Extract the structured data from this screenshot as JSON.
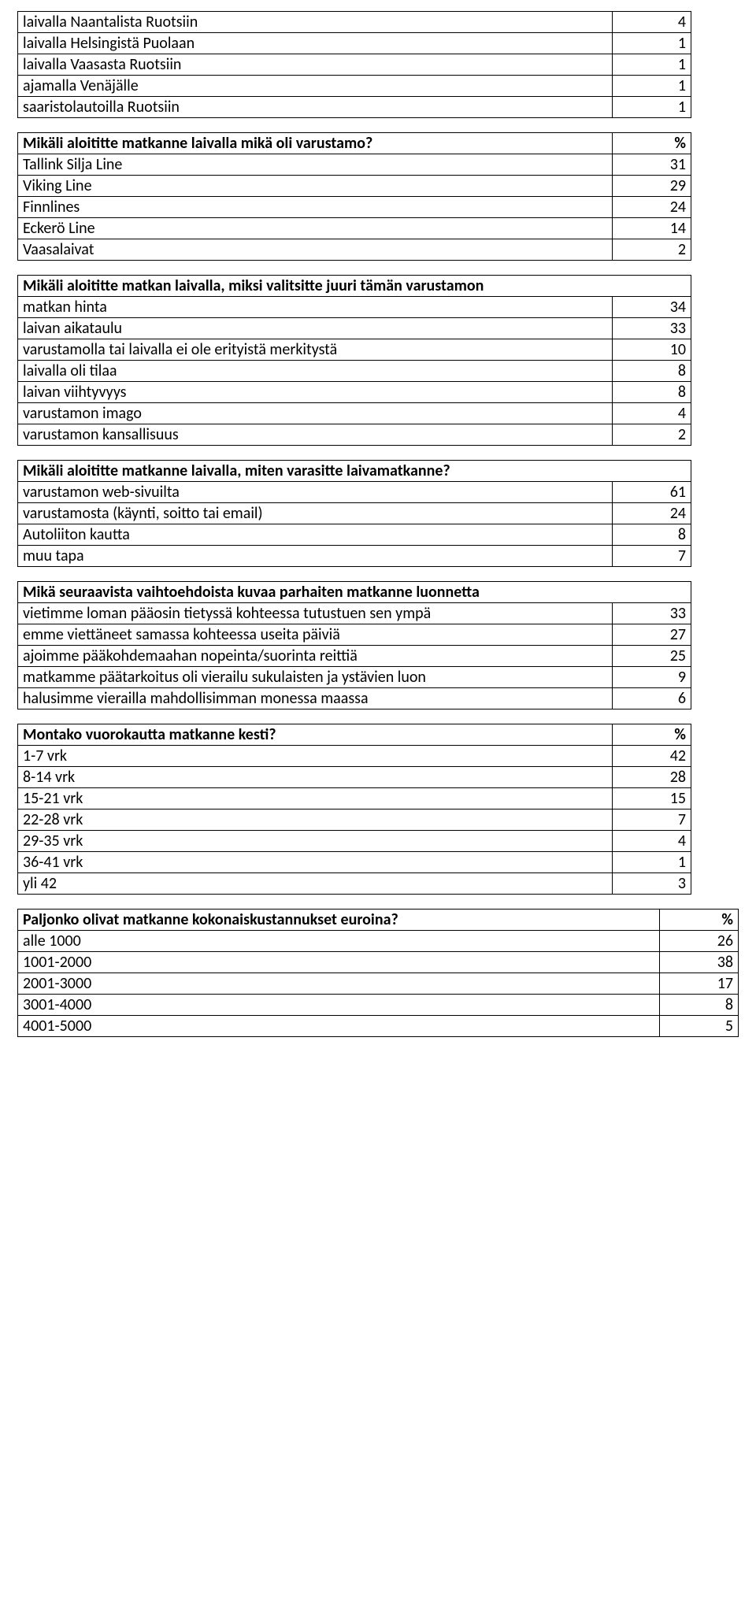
{
  "table1": {
    "rows": [
      {
        "label": "laivalla Naantalista Ruotsiin",
        "value": "4"
      },
      {
        "label": "laivalla Helsingistä Puolaan",
        "value": "1"
      },
      {
        "label": "laivalla Vaasasta Ruotsiin",
        "value": "1"
      },
      {
        "label": "ajamalla Venäjälle",
        "value": "1"
      },
      {
        "label": "saaristolautoilla Ruotsiin",
        "value": "1"
      }
    ]
  },
  "table2": {
    "header": {
      "label": "Mikäli aloititte matkanne laivalla mikä oli varustamo?",
      "value": "%"
    },
    "rows": [
      {
        "label": "Tallink Silja Line",
        "value": "31"
      },
      {
        "label": "Viking Line",
        "value": "29"
      },
      {
        "label": "Finnlines",
        "value": "24"
      },
      {
        "label": "Eckerö Line",
        "value": "14"
      },
      {
        "label": "Vaasalaivat",
        "value": "2"
      }
    ]
  },
  "table3": {
    "header": {
      "label": "Mikäli aloititte matkan laivalla, miksi valitsitte juuri tämän varustamon"
    },
    "rows": [
      {
        "label": "matkan hinta",
        "value": "34"
      },
      {
        "label": "laivan aikataulu",
        "value": "33"
      },
      {
        "label": "varustamolla tai laivalla ei ole erityistä merkitystä",
        "value": "10"
      },
      {
        "label": "laivalla oli tilaa",
        "value": "8"
      },
      {
        "label": "laivan viihtyvyys",
        "value": "8"
      },
      {
        "label": "varustamon imago",
        "value": "4"
      },
      {
        "label": "varustamon kansallisuus",
        "value": "2"
      }
    ]
  },
  "table4": {
    "header": {
      "label": "Mikäli aloititte matkanne laivalla, miten varasitte laivamatkanne?"
    },
    "rows": [
      {
        "label": "varustamon web-sivuilta",
        "value": "61"
      },
      {
        "label": "varustamosta (käynti, soitto tai email)",
        "value": "24"
      },
      {
        "label": "Autoliiton kautta",
        "value": "8"
      },
      {
        "label": "muu tapa",
        "value": "7"
      }
    ]
  },
  "table5": {
    "header": {
      "label": "Mikä seuraavista vaihtoehdoista kuvaa parhaiten matkanne luonnetta"
    },
    "rows": [
      {
        "label": "vietimme loman pääosin tietyssä kohteessa tutustuen sen ympä",
        "value": "33"
      },
      {
        "label": "emme viettäneet samassa kohteessa useita päiviä",
        "value": "27"
      },
      {
        "label": "ajoimme pääkohdemaahan nopeinta/suorinta reittiä",
        "value": "25"
      },
      {
        "label": "matkamme päätarkoitus oli vierailu sukulaisten ja ystävien luon",
        "value": "9"
      },
      {
        "label": "halusimme vierailla mahdollisimman monessa maassa",
        "value": "6"
      }
    ]
  },
  "table6": {
    "header": {
      "label": "Montako vuorokautta matkanne kesti?",
      "value": "%"
    },
    "rows": [
      {
        "label": "1-7 vrk",
        "value": "42"
      },
      {
        "label": "8-14 vrk",
        "value": "28"
      },
      {
        "label": "15-21 vrk",
        "value": "15"
      },
      {
        "label": "22-28 vrk",
        "value": "7"
      },
      {
        "label": "29-35 vrk",
        "value": "4"
      },
      {
        "label": "36-41 vrk",
        "value": "1"
      },
      {
        "label": "yli 42",
        "value": "3"
      }
    ]
  },
  "table7": {
    "header": {
      "label": "Paljonko olivat matkanne kokonaiskustannukset euroina?",
      "value": "%"
    },
    "rows": [
      {
        "label": "alle 1000",
        "value": "26"
      },
      {
        "label": "1001-2000",
        "value": "38"
      },
      {
        "label": "2001-3000",
        "value": "17"
      },
      {
        "label": "3001-4000",
        "value": "8"
      },
      {
        "label": "4001-5000",
        "value": "5"
      }
    ]
  }
}
